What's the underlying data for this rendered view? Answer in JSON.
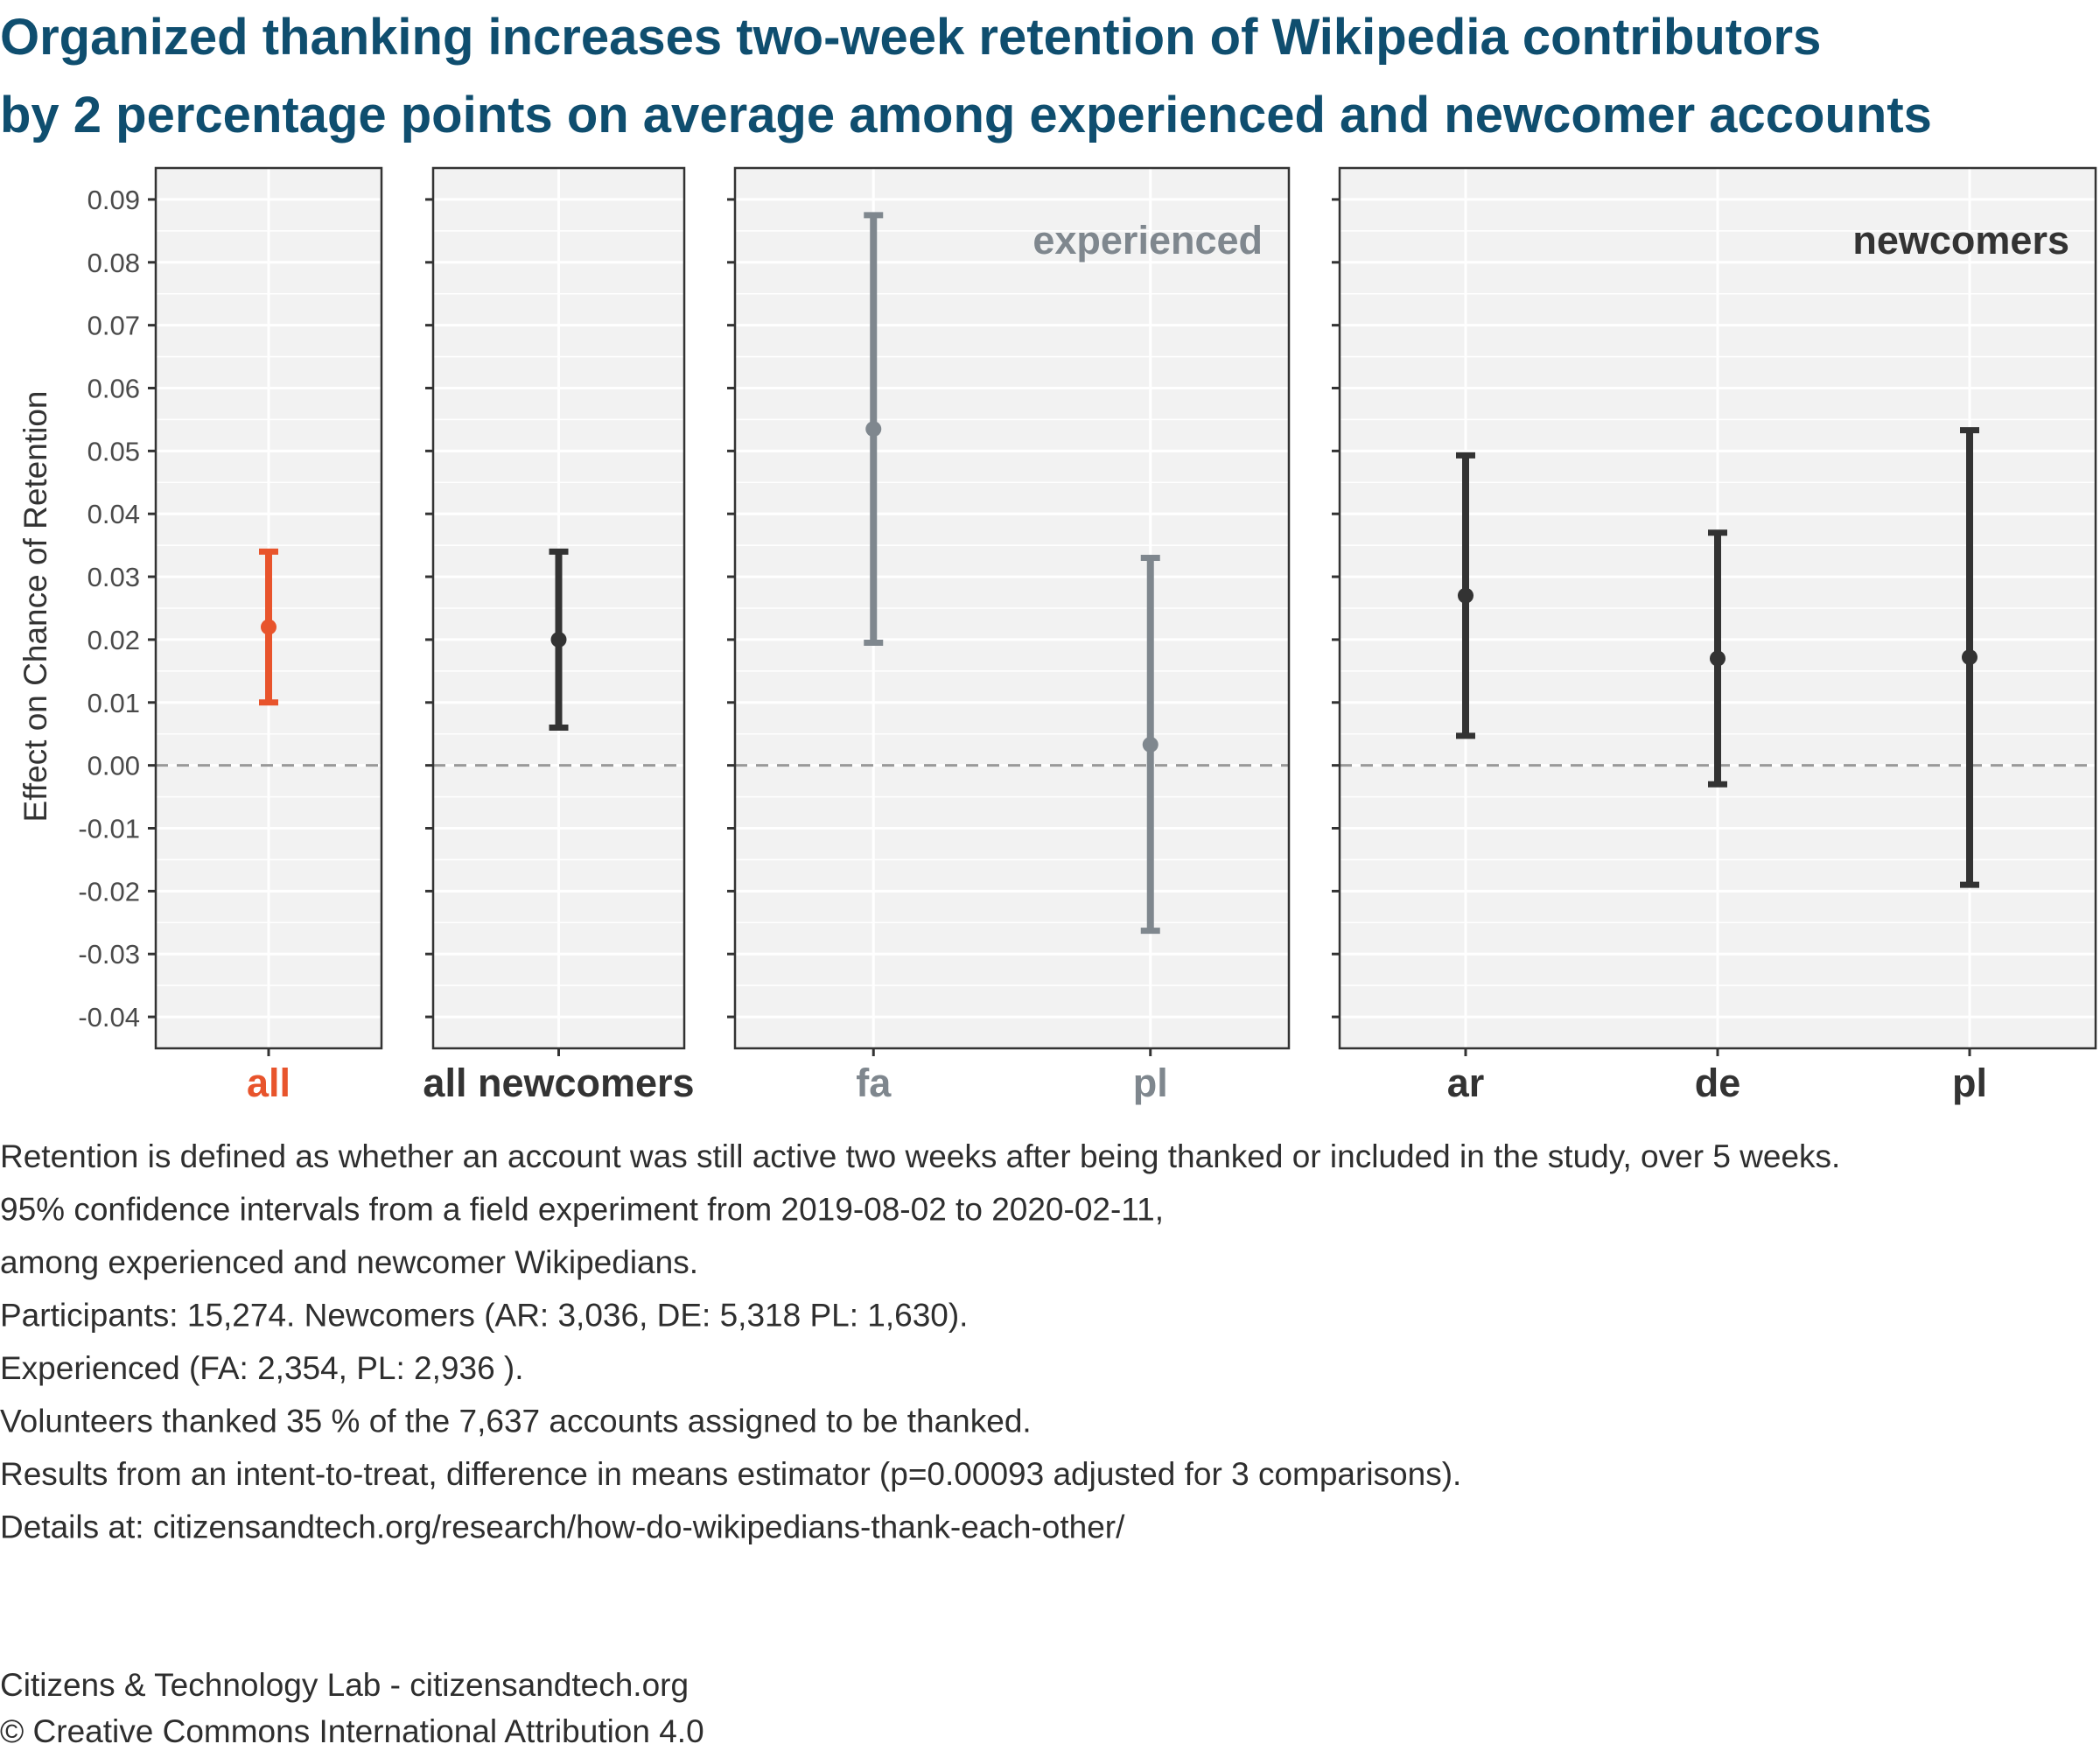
{
  "title_lines": [
    "Organized thanking increases two-week retention of Wikipedia contributors",
    "by 2 percentage points on average among experienced and newcomer accounts"
  ],
  "caption_lines": [
    "Retention is defined as whether an account was still active two weeks after being thanked or included in the study, over 5 weeks.",
    "95% confidence intervals from a field experiment from 2019-08-02 to 2020-02-11,",
    "among experienced and newcomer Wikipedians.",
    "Participants: 15,274. Newcomers (AR: 3,036, DE: 5,318 PL: 1,630).",
    "Experienced (FA: 2,354, PL: 2,936 ).",
    "Volunteers thanked 35 % of the 7,637 accounts assigned to be thanked.",
    "Results from an intent-to-treat, difference in means estimator (p=0.00093 adjusted for 3 comparisons).",
    "Details at: citizensandtech.org/research/how-do-wikipedians-thank-each-other/"
  ],
  "footer_lines": [
    "Citizens & Technology Lab - citizensandtech.org",
    "© Creative Commons International Attribution 4.0"
  ],
  "colors": {
    "title": "#0f4e6f",
    "all": "#e8542c",
    "experienced": "#7f878e",
    "newcomers": "#333333",
    "panel_bg": "#f2f2f2",
    "grid": "#ffffff",
    "zero_line": "#999999"
  },
  "chart_data": {
    "type": "errorbar",
    "ylabel": "Effect on Chance of Retention",
    "ylim": [
      -0.045,
      0.095
    ],
    "yticks": [
      -0.04,
      -0.03,
      -0.02,
      -0.01,
      0.0,
      0.01,
      0.02,
      0.03,
      0.04,
      0.05,
      0.06,
      0.07,
      0.08,
      0.09
    ],
    "ytick_labels": [
      "-0.04",
      "-0.03",
      "-0.02",
      "-0.01",
      "0.00",
      "0.01",
      "0.02",
      "0.03",
      "0.04",
      "0.05",
      "0.06",
      "0.07",
      "0.08",
      "0.09"
    ],
    "reference_line": 0.0,
    "grid": true,
    "panels": [
      {
        "label": "",
        "color_key": "all",
        "points": [
          {
            "category": "all",
            "estimate": 0.022,
            "lower": 0.01,
            "upper": 0.034
          }
        ]
      },
      {
        "label": "",
        "color_key": "newcomers",
        "points": [
          {
            "category": "all newcomers",
            "estimate": 0.02,
            "lower": 0.006,
            "upper": 0.034
          }
        ]
      },
      {
        "label": "experienced",
        "color_key": "experienced",
        "points": [
          {
            "category": "fa",
            "estimate": 0.0535,
            "lower": 0.0195,
            "upper": 0.0875
          },
          {
            "category": "pl",
            "estimate": 0.0033,
            "lower": -0.0263,
            "upper": 0.033
          }
        ]
      },
      {
        "label": "newcomers",
        "color_key": "newcomers",
        "points": [
          {
            "category": "ar",
            "estimate": 0.027,
            "lower": 0.0047,
            "upper": 0.0493
          },
          {
            "category": "de",
            "estimate": 0.017,
            "lower": -0.003,
            "upper": 0.037
          },
          {
            "category": "pl",
            "estimate": 0.0172,
            "lower": -0.019,
            "upper": 0.0533
          }
        ]
      }
    ]
  }
}
